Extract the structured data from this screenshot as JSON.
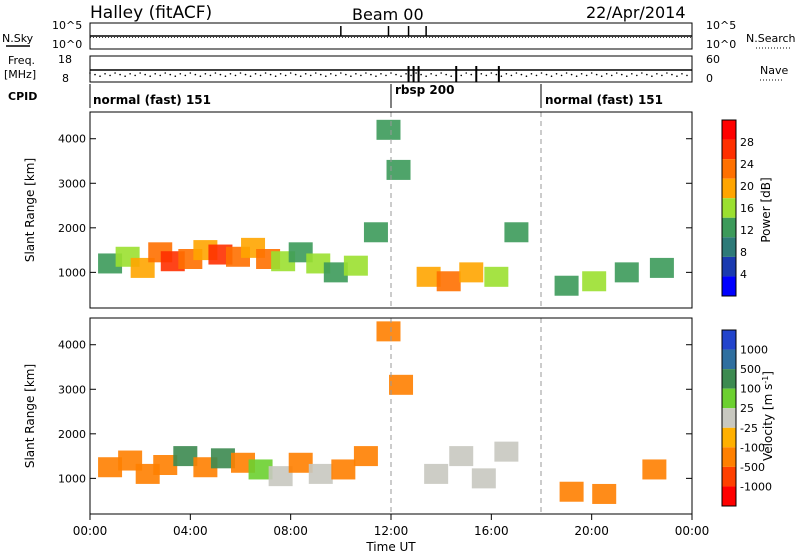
{
  "header": {
    "station": "Halley (fitACF)",
    "beam": "Beam 00",
    "date": "22/Apr/2014"
  },
  "chart_data": [
    {
      "type": "line",
      "panel": "noise",
      "left_label": "N.Sky",
      "left_ticks": [
        "10^5",
        "10^0"
      ],
      "right_label": "N.Search",
      "right_ticks": [
        "10^5",
        "10^0"
      ],
      "right_legend_style": "dotted",
      "spikes_hours": [
        10.0,
        11.9,
        12.7,
        13.4
      ],
      "baseline": "flat"
    },
    {
      "type": "scatter",
      "panel": "frequency",
      "left_label_lines": [
        "Freq.",
        "[MHz]"
      ],
      "left_ticks": [
        "18",
        "8"
      ],
      "right_label": "Nave",
      "right_ticks": [
        "60",
        "0"
      ],
      "right_legend_style": "dotted",
      "drop_bars_hours": [
        12.7,
        12.9,
        13.1,
        14.6,
        15.4,
        16.3
      ]
    },
    {
      "type": "table",
      "panel": "cpid",
      "label": "CPID",
      "segments": [
        {
          "label": "normal (fast) 151",
          "start_hour": 0,
          "end_hour": 12
        },
        {
          "label": "rbsp 200",
          "start_hour": 12,
          "end_hour": 18
        },
        {
          "label": "normal (fast) 151",
          "start_hour": 18,
          "end_hour": 24
        }
      ]
    },
    {
      "type": "heatmap",
      "panel": "power",
      "ylabel": "Slant Range [km]",
      "yticks": [
        1000,
        2000,
        3000,
        4000
      ],
      "ylim": [
        200,
        4600
      ],
      "xlim_hours": [
        0,
        24
      ],
      "colorbar_label": "Power [dB]",
      "colorbar_ticks": [
        "28",
        "24",
        "20",
        "16",
        "12",
        "8",
        "4"
      ],
      "colorbar_colors": [
        "#ff0000",
        "#ff3000",
        "#ff7000",
        "#ffa500",
        "#9be030",
        "#3c9a5a",
        "#2d7a78",
        "#1a3ab0",
        "#0000ff"
      ],
      "ground_scatter_color": "#aaaaaa"
    },
    {
      "type": "heatmap",
      "panel": "velocity",
      "ylabel": "Slant Range [km]",
      "yticks": [
        1000,
        2000,
        3000,
        4000
      ],
      "ylim": [
        200,
        4600
      ],
      "xlim_hours": [
        0,
        24
      ],
      "xticks": [
        "00:00",
        "04:00",
        "08:00",
        "12:00",
        "16:00",
        "20:00",
        "00:00"
      ],
      "xlabel": "Time UT",
      "colorbar_label": "Velocity [m s^-1]",
      "colorbar_ticks": [
        "1000",
        "500",
        "100",
        "25",
        "-25",
        "-100",
        "-500",
        "-1000"
      ],
      "colorbar_colors": [
        "#2244cc",
        "#2f6f9f",
        "#3c8a50",
        "#6cd030",
        "#c8c8c0",
        "#ffb000",
        "#ff8000",
        "#ff4000",
        "#ff0000"
      ],
      "ground_scatter_color": "#c8c8c0"
    }
  ],
  "gates": [
    {
      "kind": "power",
      "h": 0.8,
      "rng": 1200,
      "p": 8
    },
    {
      "kind": "power",
      "h": 1.5,
      "rng": 1350,
      "p": 12
    },
    {
      "kind": "power",
      "h": 2.1,
      "rng": 1100,
      "p": 16
    },
    {
      "kind": "power",
      "h": 2.8,
      "rng": 1450,
      "p": 20
    },
    {
      "kind": "power",
      "h": 3.3,
      "rng": 1250,
      "p": 24
    },
    {
      "kind": "power",
      "h": 4.0,
      "rng": 1300,
      "p": 20
    },
    {
      "kind": "power",
      "h": 4.6,
      "rng": 1500,
      "p": 16
    },
    {
      "kind": "power",
      "h": 5.2,
      "rng": 1400,
      "p": 24
    },
    {
      "kind": "power",
      "h": 5.9,
      "rng": 1350,
      "p": 20
    },
    {
      "kind": "power",
      "h": 6.5,
      "rng": 1550,
      "p": 16
    },
    {
      "kind": "power",
      "h": 7.1,
      "rng": 1300,
      "p": 20
    },
    {
      "kind": "power",
      "h": 7.7,
      "rng": 1250,
      "p": 12
    },
    {
      "kind": "power",
      "h": 8.4,
      "rng": 1450,
      "p": 8
    },
    {
      "kind": "power",
      "h": 9.1,
      "rng": 1200,
      "p": 12
    },
    {
      "kind": "power",
      "h": 9.8,
      "rng": 1000,
      "p": 8
    },
    {
      "kind": "power",
      "h": 10.6,
      "rng": 1150,
      "p": 12
    },
    {
      "kind": "power",
      "h": 11.4,
      "rng": 1900,
      "p": 8
    },
    {
      "kind": "power",
      "h": 11.9,
      "rng": 4200,
      "p": 8
    },
    {
      "kind": "power",
      "h": 12.3,
      "rng": 3300,
      "p": 8
    },
    {
      "kind": "power",
      "h": 13.5,
      "rng": 900,
      "p": 16
    },
    {
      "kind": "power",
      "h": 14.3,
      "rng": 800,
      "p": 20
    },
    {
      "kind": "power",
      "h": 15.2,
      "rng": 1000,
      "p": 16
    },
    {
      "kind": "power",
      "h": 16.2,
      "rng": 900,
      "p": 12
    },
    {
      "kind": "power",
      "h": 17.0,
      "rng": 1900,
      "p": 8
    },
    {
      "kind": "power",
      "h": 19.0,
      "rng": 700,
      "p": 8
    },
    {
      "kind": "power",
      "h": 20.1,
      "rng": 800,
      "p": 12
    },
    {
      "kind": "power",
      "h": 21.4,
      "rng": 1000,
      "p": 8
    },
    {
      "kind": "power",
      "h": 22.8,
      "rng": 1100,
      "p": 8
    },
    {
      "kind": "velocity",
      "h": 0.8,
      "rng": 1250,
      "v": -200
    },
    {
      "kind": "velocity",
      "h": 1.6,
      "rng": 1400,
      "v": -100
    },
    {
      "kind": "velocity",
      "h": 2.3,
      "rng": 1100,
      "v": -300
    },
    {
      "kind": "velocity",
      "h": 3.0,
      "rng": 1300,
      "v": -100
    },
    {
      "kind": "velocity",
      "h": 3.8,
      "rng": 1500,
      "v": 100
    },
    {
      "kind": "velocity",
      "h": 4.6,
      "rng": 1250,
      "v": -200
    },
    {
      "kind": "velocity",
      "h": 5.3,
      "rng": 1450,
      "v": 200
    },
    {
      "kind": "velocity",
      "h": 6.1,
      "rng": 1350,
      "v": -100
    },
    {
      "kind": "velocity",
      "h": 6.8,
      "rng": 1200,
      "v": 50
    },
    {
      "kind": "velocity",
      "h": 7.6,
      "rng": 1050,
      "v": 0
    },
    {
      "kind": "velocity",
      "h": 8.4,
      "rng": 1350,
      "v": -150
    },
    {
      "kind": "velocity",
      "h": 9.2,
      "rng": 1100,
      "v": 0
    },
    {
      "kind": "velocity",
      "h": 10.1,
      "rng": 1200,
      "v": -200
    },
    {
      "kind": "velocity",
      "h": 11.0,
      "rng": 1500,
      "v": -300
    },
    {
      "kind": "velocity",
      "h": 11.9,
      "rng": 4300,
      "v": -300
    },
    {
      "kind": "velocity",
      "h": 12.4,
      "rng": 3100,
      "v": -300
    },
    {
      "kind": "velocity",
      "h": 13.8,
      "rng": 1100,
      "v": 0
    },
    {
      "kind": "velocity",
      "h": 14.8,
      "rng": 1500,
      "v": 0
    },
    {
      "kind": "velocity",
      "h": 15.7,
      "rng": 1000,
      "v": 0
    },
    {
      "kind": "velocity",
      "h": 16.6,
      "rng": 1600,
      "v": 0
    },
    {
      "kind": "velocity",
      "h": 19.2,
      "rng": 700,
      "v": -200
    },
    {
      "kind": "velocity",
      "h": 20.5,
      "rng": 650,
      "v": -150
    },
    {
      "kind": "velocity",
      "h": 22.5,
      "rng": 1200,
      "v": -100
    }
  ]
}
